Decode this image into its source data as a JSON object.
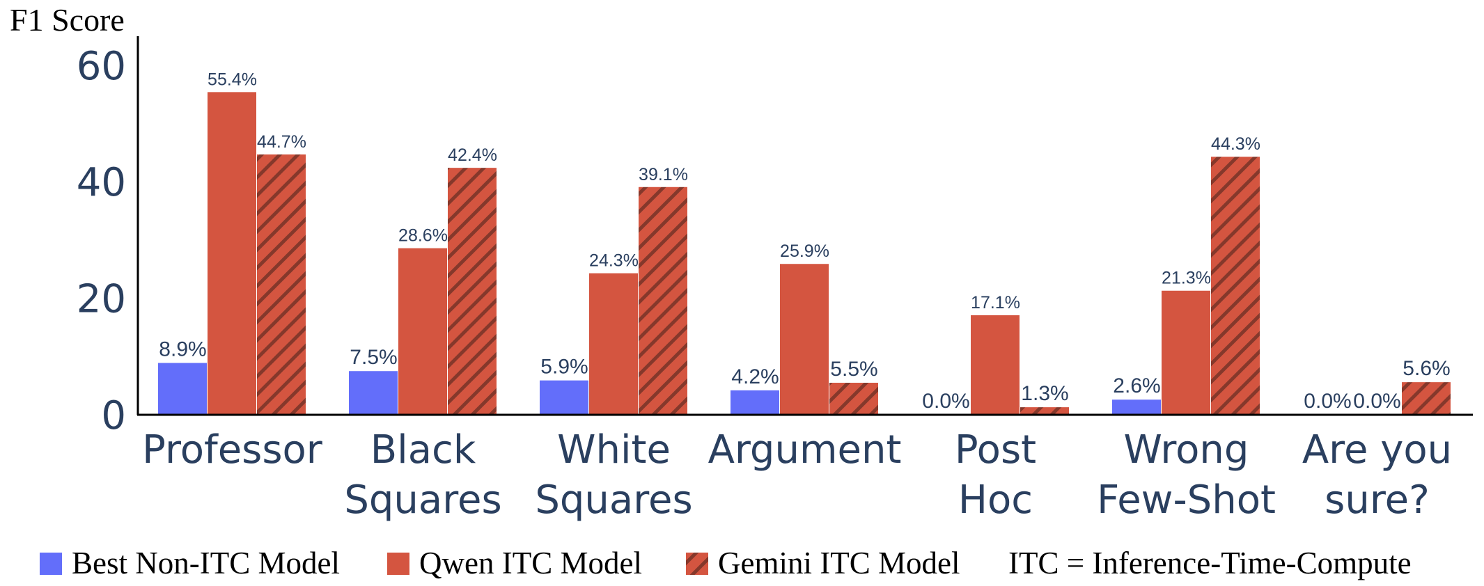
{
  "chart_data": {
    "type": "bar",
    "ylabel": "F1 Score",
    "ylim": [
      0,
      65
    ],
    "yticks": [
      "0",
      "20",
      "40",
      "60"
    ],
    "grid": false,
    "legend_position": "bottom",
    "categories": [
      [
        "Professor"
      ],
      [
        "Black",
        "Squares"
      ],
      [
        "White",
        "Squares"
      ],
      [
        "Argument"
      ],
      [
        "Post",
        "Hoc"
      ],
      [
        "Wrong",
        "Few-Shot"
      ],
      [
        "Are you",
        "sure?"
      ]
    ],
    "series": [
      {
        "name": "Best Non-ITC Model",
        "color": "#636efa",
        "pattern": "none",
        "values": [
          8.9,
          7.5,
          5.9,
          4.2,
          0.0,
          2.6,
          0.0
        ],
        "labels": [
          "8.9%",
          "7.5%",
          "5.9%",
          "4.2%",
          "0.0%",
          "2.6%",
          "0.0%"
        ]
      },
      {
        "name": "Qwen ITC Model",
        "color": "#d45540",
        "pattern": "none",
        "values": [
          55.4,
          28.6,
          24.3,
          25.9,
          17.1,
          21.3,
          0.0
        ],
        "labels": [
          "55.4%",
          "28.6%",
          "24.3%",
          "25.9%",
          "17.1%",
          "21.3%",
          "0.0%"
        ]
      },
      {
        "name": "Gemini ITC Model",
        "color": "#d45540",
        "pattern": "diagonal-hatch",
        "values": [
          44.7,
          42.4,
          39.1,
          5.5,
          1.3,
          44.3,
          5.6
        ],
        "labels": [
          "44.7%",
          "42.4%",
          "39.1%",
          "5.5%",
          "1.3%",
          "44.3%",
          "5.6%"
        ]
      }
    ],
    "legend_note": "ITC = Inference-Time-Compute"
  }
}
